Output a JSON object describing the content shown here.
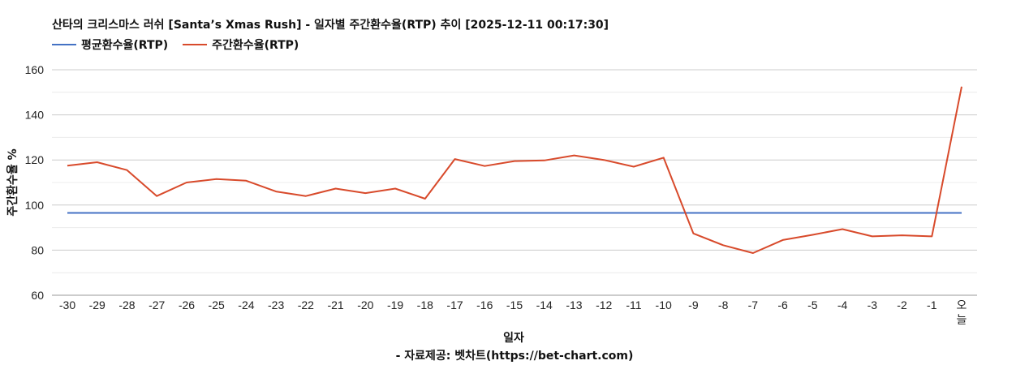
{
  "chart_data": {
    "type": "line",
    "title": "산타의 크리스마스 러쉬 [Santa’s Xmas Rush] - 일자별 주간환수율(RTP) 추이 [2025-12-11 00:17:30]",
    "xlabel": "일자",
    "ylabel": "주간환수율 %",
    "source": "- 자료제공: 벳차트(https://bet-chart.com)",
    "ylim": [
      60,
      160
    ],
    "yticks": [
      60,
      80,
      100,
      120,
      140,
      160
    ],
    "grid": true,
    "legend_position": "top-left",
    "categories": [
      "-30",
      "-29",
      "-28",
      "-27",
      "-26",
      "-25",
      "-24",
      "-23",
      "-22",
      "-21",
      "-20",
      "-19",
      "-18",
      "-17",
      "-16",
      "-15",
      "-14",
      "-13",
      "-12",
      "-11",
      "-10",
      "-9",
      "-8",
      "-7",
      "-6",
      "-5",
      "-4",
      "-3",
      "-2",
      "-1",
      "오늘"
    ],
    "series": [
      {
        "name": "평균환수율(RTP)",
        "color": "#4472c4",
        "values": [
          96.5,
          96.5,
          96.5,
          96.5,
          96.5,
          96.5,
          96.5,
          96.5,
          96.5,
          96.5,
          96.5,
          96.5,
          96.5,
          96.5,
          96.5,
          96.5,
          96.5,
          96.5,
          96.5,
          96.5,
          96.5,
          96.5,
          96.5,
          96.5,
          96.5,
          96.5,
          96.5,
          96.5,
          96.5,
          96.5,
          96.5
        ]
      },
      {
        "name": "주간환수율(RTP)",
        "color": "#d84a2b",
        "values": [
          117.5,
          119,
          115.5,
          104,
          110,
          111.5,
          110.8,
          106,
          104,
          107.3,
          105.3,
          107.3,
          102.8,
          120.4,
          117.3,
          119.5,
          119.8,
          122,
          120,
          117,
          121,
          87.4,
          82.2,
          78.7,
          84.5,
          86.8,
          89.3,
          86.1,
          86.6,
          86.1,
          152.5
        ]
      }
    ]
  }
}
